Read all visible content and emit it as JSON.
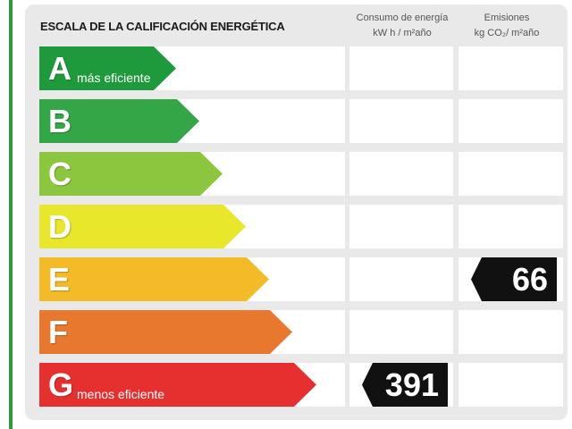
{
  "header": {
    "title": "ESCALA DE LA CALIFICACIÓN ENERGÉTICA",
    "energy_col_line1": "Consumo de energía",
    "energy_col_line2": "kW h / m²año",
    "emissions_col_line1": "Emisiones",
    "emissions_col_line2": "kg CO₂/ m²año"
  },
  "rows": [
    {
      "letter": "A",
      "sub": "más eficiente",
      "color": "#1e9a3d"
    },
    {
      "letter": "B",
      "sub": "",
      "color": "#33a748"
    },
    {
      "letter": "C",
      "sub": "",
      "color": "#8cc63e"
    },
    {
      "letter": "D",
      "sub": "",
      "color": "#e8e72b"
    },
    {
      "letter": "E",
      "sub": "",
      "color": "#f2bb27"
    },
    {
      "letter": "F",
      "sub": "",
      "color": "#e9782f"
    },
    {
      "letter": "G",
      "sub": "menos eficiente",
      "color": "#e5302f"
    }
  ],
  "ratings": {
    "energy": {
      "letter": "G",
      "value": "391"
    },
    "emissions": {
      "letter": "E",
      "value": "66"
    }
  }
}
